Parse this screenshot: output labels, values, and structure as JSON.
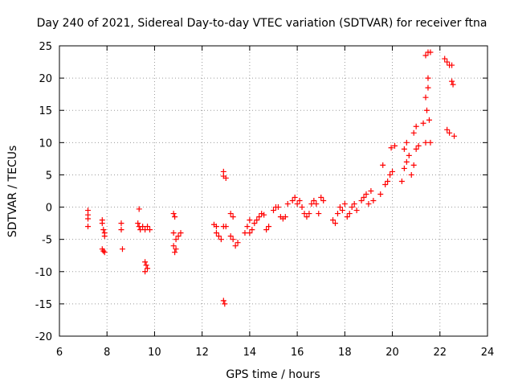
{
  "chart_data": {
    "type": "scatter",
    "title": "Day 240 of 2021, Sidereal Day-to-day VTEC variation (SDTVAR) for receiver ftna",
    "xlabel": "GPS time / hours",
    "ylabel": "SDTVAR / TECUs",
    "xlim": [
      6,
      24
    ],
    "ylim": [
      -20,
      25
    ],
    "xticks": [
      "6",
      "8",
      "10",
      "12",
      "14",
      "16",
      "18",
      "20",
      "22",
      "24"
    ],
    "yticks": [
      "25",
      "20",
      "15",
      "10",
      "5",
      "0",
      "-5",
      "-10",
      "-15",
      "-20"
    ],
    "grid": true,
    "marker": "+",
    "series": [
      {
        "name": "SDTVAR",
        "color": "#ff0000",
        "points": [
          [
            7.2,
            -0.5
          ],
          [
            7.2,
            -1.2
          ],
          [
            7.2,
            -1.8
          ],
          [
            7.2,
            -3.0
          ],
          [
            7.8,
            -2.0
          ],
          [
            7.8,
            -2.5
          ],
          [
            7.85,
            -3.5
          ],
          [
            7.9,
            -4.0
          ],
          [
            7.9,
            -4.5
          ],
          [
            7.8,
            -6.5
          ],
          [
            7.85,
            -6.8
          ],
          [
            7.9,
            -7.0
          ],
          [
            8.6,
            -2.5
          ],
          [
            8.6,
            -3.5
          ],
          [
            8.65,
            -6.5
          ],
          [
            9.35,
            -0.3
          ],
          [
            9.3,
            -2.5
          ],
          [
            9.35,
            -3.0
          ],
          [
            9.4,
            -3.5
          ],
          [
            9.5,
            -3.0
          ],
          [
            9.6,
            -3.5
          ],
          [
            9.7,
            -3.0
          ],
          [
            9.8,
            -3.5
          ],
          [
            9.6,
            -8.5
          ],
          [
            9.65,
            -9.0
          ],
          [
            9.7,
            -9.5
          ],
          [
            9.6,
            -10.0
          ],
          [
            10.8,
            -1.0
          ],
          [
            10.85,
            -1.5
          ],
          [
            10.8,
            -4.0
          ],
          [
            10.9,
            -5.0
          ],
          [
            10.8,
            -6.0
          ],
          [
            10.9,
            -6.5
          ],
          [
            10.85,
            -7.0
          ],
          [
            11.0,
            -4.5
          ],
          [
            11.1,
            -4.0
          ],
          [
            12.5,
            -2.7
          ],
          [
            12.6,
            -3.0
          ],
          [
            12.6,
            -4.0
          ],
          [
            12.7,
            -4.5
          ],
          [
            12.8,
            -5.0
          ],
          [
            12.9,
            -3.0
          ],
          [
            13.0,
            -3.0
          ],
          [
            12.9,
            5.5
          ],
          [
            12.9,
            4.8
          ],
          [
            13.0,
            4.5
          ],
          [
            12.9,
            -14.5
          ],
          [
            12.95,
            -15.0
          ],
          [
            13.2,
            -1.0
          ],
          [
            13.3,
            -1.5
          ],
          [
            13.2,
            -4.5
          ],
          [
            13.3,
            -5.0
          ],
          [
            13.4,
            -6.0
          ],
          [
            13.5,
            -5.5
          ],
          [
            13.8,
            -4.0
          ],
          [
            13.9,
            -3.0
          ],
          [
            14.0,
            -2.0
          ],
          [
            14.0,
            -4.0
          ],
          [
            14.1,
            -3.5
          ],
          [
            14.2,
            -2.5
          ],
          [
            14.3,
            -2.0
          ],
          [
            14.4,
            -1.5
          ],
          [
            14.5,
            -1.0
          ],
          [
            14.6,
            -1.2
          ],
          [
            14.7,
            -3.5
          ],
          [
            14.8,
            -3.0
          ],
          [
            15.0,
            -0.5
          ],
          [
            15.1,
            0.0
          ],
          [
            15.2,
            0.0
          ],
          [
            15.3,
            -1.5
          ],
          [
            15.4,
            -1.8
          ],
          [
            15.5,
            -1.5
          ],
          [
            15.6,
            0.5
          ],
          [
            15.8,
            1.0
          ],
          [
            15.9,
            1.5
          ],
          [
            16.0,
            0.5
          ],
          [
            16.1,
            1.0
          ],
          [
            16.2,
            0.0
          ],
          [
            16.3,
            -1.0
          ],
          [
            16.4,
            -1.5
          ],
          [
            16.5,
            -1.0
          ],
          [
            16.6,
            0.5
          ],
          [
            16.7,
            1.0
          ],
          [
            16.8,
            0.5
          ],
          [
            16.9,
            -1.0
          ],
          [
            17.0,
            1.5
          ],
          [
            17.1,
            1.0
          ],
          [
            17.5,
            -2.0
          ],
          [
            17.6,
            -2.5
          ],
          [
            17.7,
            -1.0
          ],
          [
            17.8,
            0.0
          ],
          [
            17.9,
            -0.5
          ],
          [
            18.0,
            0.5
          ],
          [
            18.1,
            -1.5
          ],
          [
            18.2,
            -1.0
          ],
          [
            18.3,
            0.0
          ],
          [
            18.4,
            0.5
          ],
          [
            18.5,
            -0.5
          ],
          [
            18.7,
            1.0
          ],
          [
            18.8,
            1.5
          ],
          [
            18.9,
            2.0
          ],
          [
            19.0,
            0.5
          ],
          [
            19.1,
            2.5
          ],
          [
            19.2,
            1.0
          ],
          [
            19.5,
            2.0
          ],
          [
            19.6,
            6.5
          ],
          [
            19.7,
            3.5
          ],
          [
            19.8,
            4.0
          ],
          [
            19.9,
            5.0
          ],
          [
            19.95,
            9.2
          ],
          [
            20.0,
            5.5
          ],
          [
            20.1,
            9.5
          ],
          [
            20.4,
            4.0
          ],
          [
            20.5,
            6.0
          ],
          [
            20.5,
            9.0
          ],
          [
            20.6,
            7.0
          ],
          [
            20.6,
            10.0
          ],
          [
            20.7,
            8.0
          ],
          [
            20.8,
            5.0
          ],
          [
            20.9,
            6.5
          ],
          [
            20.9,
            11.5
          ],
          [
            21.0,
            12.5
          ],
          [
            21.0,
            9.0
          ],
          [
            21.1,
            9.5
          ],
          [
            21.3,
            13.0
          ],
          [
            21.4,
            17.0
          ],
          [
            21.4,
            10.0
          ],
          [
            21.45,
            15.0
          ],
          [
            21.5,
            18.5
          ],
          [
            21.5,
            20.0
          ],
          [
            21.55,
            13.5
          ],
          [
            21.6,
            10.0
          ],
          [
            21.4,
            23.5
          ],
          [
            21.5,
            24.0
          ],
          [
            21.6,
            24.0
          ],
          [
            22.2,
            23.0
          ],
          [
            22.3,
            22.5
          ],
          [
            22.4,
            22.0
          ],
          [
            22.5,
            22.0
          ],
          [
            22.5,
            19.5
          ],
          [
            22.55,
            19.0
          ],
          [
            22.3,
            12.0
          ],
          [
            22.4,
            11.5
          ],
          [
            22.6,
            11.0
          ]
        ]
      }
    ]
  }
}
